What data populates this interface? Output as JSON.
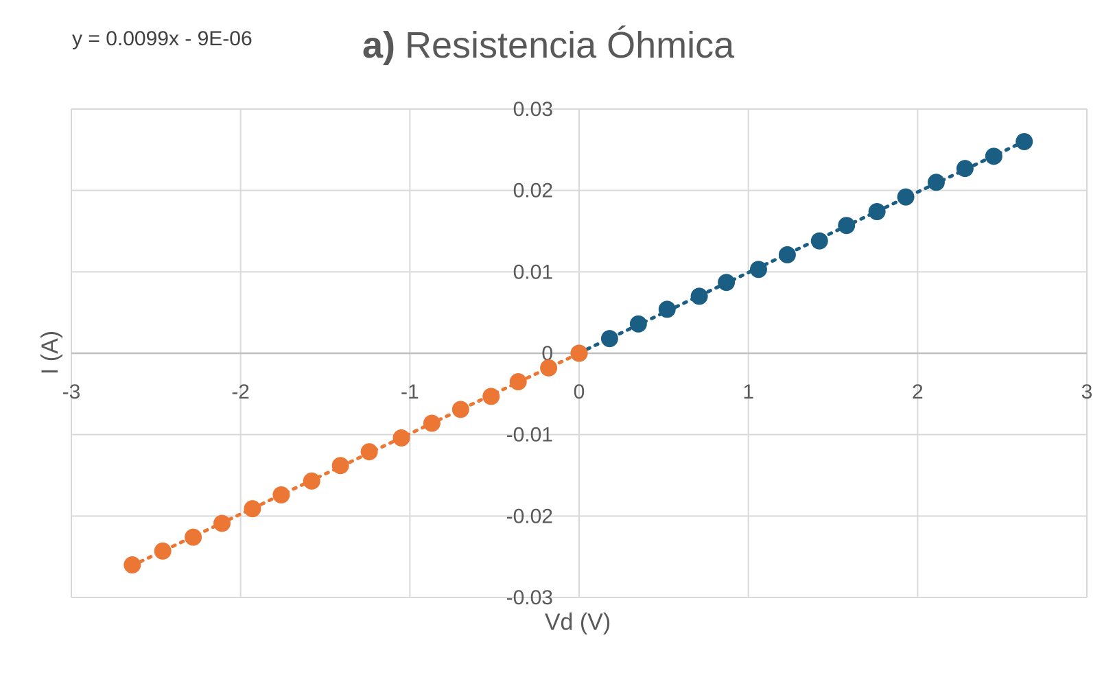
{
  "chart_data": {
    "type": "scatter",
    "title_bold": "a)",
    "title": "Resistencia Óhmica",
    "trendline_equation": "y = 0.0099x - 9E-06",
    "xlabel": "Vd (V)",
    "ylabel": "I (A)",
    "xlim": [
      -3,
      3
    ],
    "ylim": [
      -0.03,
      0.03
    ],
    "x_ticks": [
      "-3",
      "-2",
      "-1",
      "0",
      "1",
      "2",
      "3"
    ],
    "y_ticks": [
      "0.03",
      "0.02",
      "0.01",
      "0",
      "-0.01",
      "-0.02",
      "-0.03"
    ],
    "grid": true,
    "series": [
      {
        "color": "#1a5e84",
        "trendline": "dotted",
        "x": [
          0,
          0.18,
          0.35,
          0.52,
          0.71,
          0.87,
          1.06,
          1.23,
          1.42,
          1.58,
          1.76,
          1.93,
          2.11,
          2.28,
          2.45,
          2.63
        ],
        "y": [
          0,
          0.0018,
          0.0036,
          0.0054,
          0.007,
          0.0087,
          0.0103,
          0.0121,
          0.0138,
          0.0157,
          0.0174,
          0.0192,
          0.021,
          0.0227,
          0.0242,
          0.026
        ]
      },
      {
        "color": "#ec7634",
        "trendline": "dotted",
        "x": [
          0,
          -0.18,
          -0.36,
          -0.52,
          -0.7,
          -0.87,
          -1.05,
          -1.24,
          -1.41,
          -1.58,
          -1.76,
          -1.93,
          -2.11,
          -2.28,
          -2.46,
          -2.64
        ],
        "y": [
          0,
          -0.0018,
          -0.0035,
          -0.0053,
          -0.0069,
          -0.0086,
          -0.0104,
          -0.0121,
          -0.0138,
          -0.0157,
          -0.0174,
          -0.0191,
          -0.0209,
          -0.0226,
          -0.0243,
          -0.026
        ]
      }
    ]
  }
}
